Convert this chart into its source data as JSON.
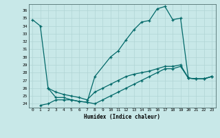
{
  "xlabel": "Humidex (Indice chaleur)",
  "bg_color": "#c8e8e8",
  "grid_color": "#b0d4d4",
  "line_color": "#006868",
  "xlim": [
    -0.5,
    23.5
  ],
  "ylim": [
    23.5,
    36.8
  ],
  "xticks": [
    0,
    1,
    2,
    3,
    4,
    5,
    6,
    7,
    8,
    9,
    10,
    11,
    12,
    13,
    14,
    15,
    16,
    17,
    18,
    19,
    20,
    21,
    22,
    23
  ],
  "yticks": [
    24,
    25,
    26,
    27,
    28,
    29,
    30,
    31,
    32,
    33,
    34,
    35,
    36
  ],
  "line1_x": [
    0,
    1,
    2,
    3,
    4,
    5,
    6,
    7,
    8,
    10,
    11,
    12,
    13,
    14,
    15,
    16,
    17,
    18,
    19,
    20,
    21,
    22,
    23
  ],
  "line1_y": [
    34.8,
    34.0,
    26.0,
    24.8,
    24.8,
    24.5,
    24.3,
    24.2,
    27.5,
    30.0,
    30.8,
    32.2,
    33.5,
    34.5,
    34.7,
    36.2,
    36.5,
    34.8,
    35.0,
    27.3,
    27.2,
    27.2,
    27.5
  ],
  "line2_x": [
    2,
    3,
    4,
    5,
    6,
    7,
    8,
    9,
    10,
    11,
    12,
    13,
    14,
    15,
    16,
    17,
    18,
    19,
    20,
    21,
    22,
    23
  ],
  "line2_y": [
    26.0,
    25.5,
    25.2,
    25.0,
    24.8,
    24.5,
    25.5,
    26.0,
    26.5,
    27.0,
    27.5,
    27.8,
    28.0,
    28.2,
    28.5,
    28.8,
    28.8,
    29.0,
    27.3,
    27.2,
    27.2,
    27.5
  ],
  "line3_x": [
    1,
    2,
    3,
    4,
    5,
    6,
    7,
    8,
    9,
    10,
    11,
    12,
    13,
    14,
    15,
    16,
    17,
    18,
    19,
    20,
    21,
    22,
    23
  ],
  "line3_y": [
    23.8,
    24.0,
    24.5,
    24.5,
    24.5,
    24.3,
    24.2,
    24.0,
    24.5,
    25.0,
    25.5,
    26.0,
    26.5,
    27.0,
    27.5,
    28.0,
    28.5,
    28.5,
    28.8,
    27.3,
    27.2,
    27.2,
    27.5
  ]
}
